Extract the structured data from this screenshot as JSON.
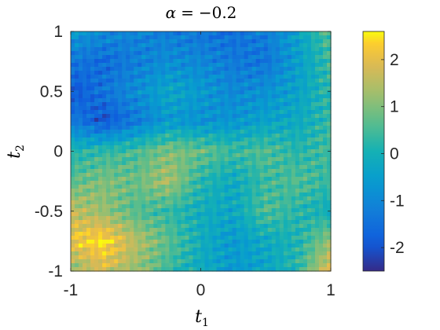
{
  "chart_data": {
    "type": "heatmap",
    "title": {
      "symbol": "α",
      "equals": "=",
      "value": "−0.2"
    },
    "xlabel": {
      "base": "t",
      "sub": "1"
    },
    "ylabel": {
      "base": "t",
      "sub": "2"
    },
    "xlim": [
      -1,
      1
    ],
    "ylim": [
      -1,
      1
    ],
    "x_ticks": [
      -1,
      0,
      1
    ],
    "y_ticks": [
      -1,
      -0.5,
      0,
      0.5,
      1
    ],
    "x_tick_labels": [
      "-1",
      "0",
      "1"
    ],
    "y_tick_labels": [
      "-1",
      "-0.5",
      "0",
      "0.5",
      "1"
    ],
    "clim": [
      -2.5,
      2.6
    ],
    "colorbar_ticks": [
      -2,
      -1,
      0,
      1,
      2
    ],
    "colorbar_tick_labels": [
      "-2",
      "-1",
      "0",
      "1",
      "2"
    ],
    "colormap": "parula",
    "grid": false,
    "field": {
      "description_levels": "approximate field values on a 9x9 grid, rows from t2=1 (top) to t2=-1 (bottom), columns t1=-1..1",
      "rows": [
        [
          -0.6,
          -0.9,
          -1.1,
          -1.2,
          -1.4,
          -1.5,
          -1.2,
          -0.4,
          0.7
        ],
        [
          -1.3,
          -1.6,
          -1.2,
          -0.9,
          -1.0,
          -1.3,
          -1.4,
          -0.5,
          0.4
        ],
        [
          -2.0,
          -1.4,
          -0.9,
          -0.3,
          -0.6,
          -1.0,
          -0.8,
          -0.4,
          0.3
        ],
        [
          -1.2,
          -2.0,
          -1.3,
          -0.6,
          -0.8,
          -0.7,
          -0.4,
          -0.2,
          0.3
        ],
        [
          0.1,
          0.3,
          0.5,
          1.0,
          0.8,
          0.4,
          0.6,
          0.2,
          0.5
        ],
        [
          0.7,
          1.0,
          0.8,
          1.4,
          0.2,
          -0.2,
          0.4,
          0.6,
          0.3
        ],
        [
          1.6,
          1.2,
          0.6,
          0.3,
          -0.1,
          -0.3,
          0.6,
          0.2,
          -0.1
        ],
        [
          2.1,
          2.5,
          1.5,
          0.7,
          -0.1,
          -0.6,
          -0.2,
          0.1,
          1.2
        ],
        [
          1.0,
          1.8,
          1.2,
          0.4,
          -0.2,
          -0.6,
          -0.4,
          0.3,
          2.0
        ]
      ]
    }
  }
}
